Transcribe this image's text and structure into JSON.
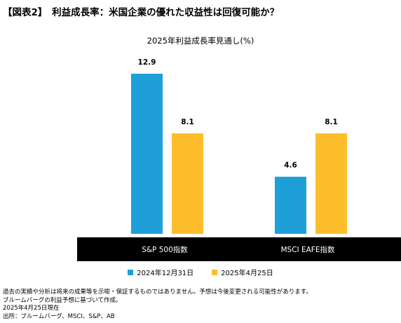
{
  "page_title": "【図表2】　利益成長率：米国企業の優れた収益性は回復可能か？",
  "colors": {
    "series_2024": "#1f9fd8",
    "series_2025": "#fdbe2b",
    "category_band": "#000000",
    "category_text": "#ffffff"
  },
  "chart_data": {
    "type": "bar",
    "title": "2025年利益成長率見通し(%)",
    "categories": [
      "S&P 500指数",
      "MSCI EAFE指数"
    ],
    "series": [
      {
        "name": "2024年12月31日",
        "values": [
          12.9,
          4.6
        ]
      },
      {
        "name": "2025年4月25日",
        "values": [
          8.1,
          8.1
        ]
      }
    ],
    "value_labels": [
      [
        "12.9",
        "4.6"
      ],
      [
        "8.1",
        "8.1"
      ]
    ],
    "ylim": [
      0,
      14
    ],
    "xlabel": "",
    "ylabel": "",
    "grid": false,
    "legend": "bottom"
  },
  "notes": [
    "過去の実績や分析は将来の成果等を示唆・保証するものではありません。予想は今後変更される可能性があります。",
    "ブルームバーグの利益予想に基づいて作成。",
    "2025年4月25日現在",
    "出所：ブルームバーグ、MSCI、S&P、AB"
  ]
}
